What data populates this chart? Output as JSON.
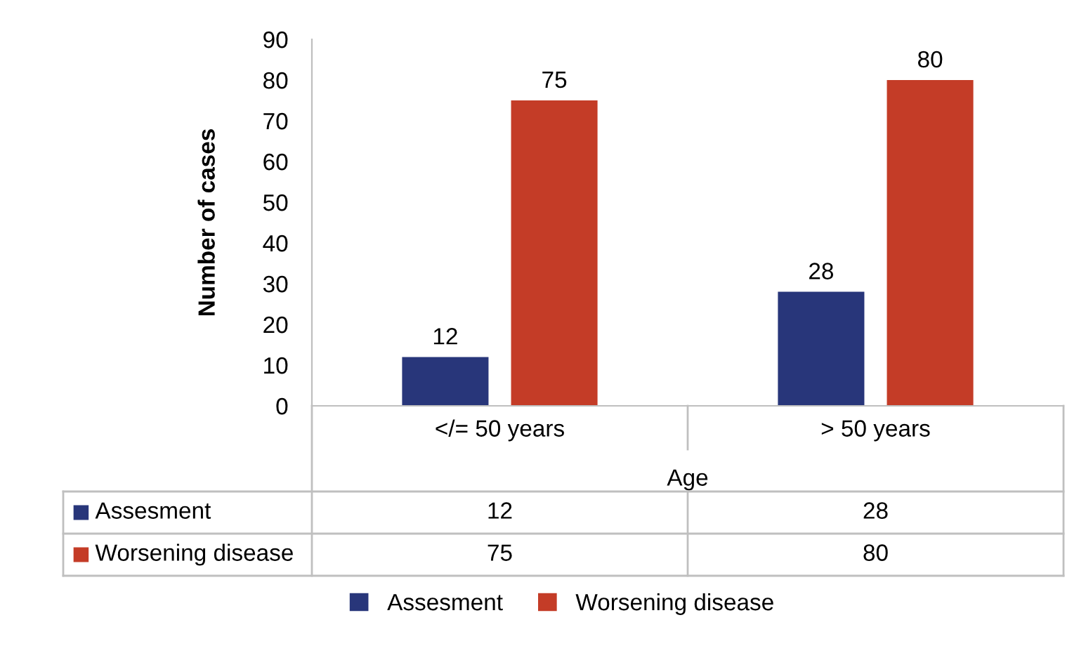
{
  "chart_data": {
    "type": "bar",
    "xlabel": "Age",
    "ylabel": "Number of cases",
    "categories": [
      "</= 50 years",
      "> 50 years"
    ],
    "series": [
      {
        "name": "Assesment",
        "color": "#28367a",
        "values": [
          12,
          28
        ],
        "value_labels": [
          "12",
          "28"
        ]
      },
      {
        "name": "Worsening disease",
        "color": "#c43c27",
        "values": [
          75,
          80
        ],
        "value_labels": [
          "75",
          "80"
        ]
      }
    ],
    "ylim": [
      0,
      90
    ],
    "yticks": [
      0,
      10,
      20,
      30,
      40,
      50,
      60,
      70,
      80,
      90
    ],
    "annotations": [
      "12",
      "28",
      "75",
      "80"
    ],
    "grid": false,
    "legend": "bottom",
    "data_labels": true
  }
}
